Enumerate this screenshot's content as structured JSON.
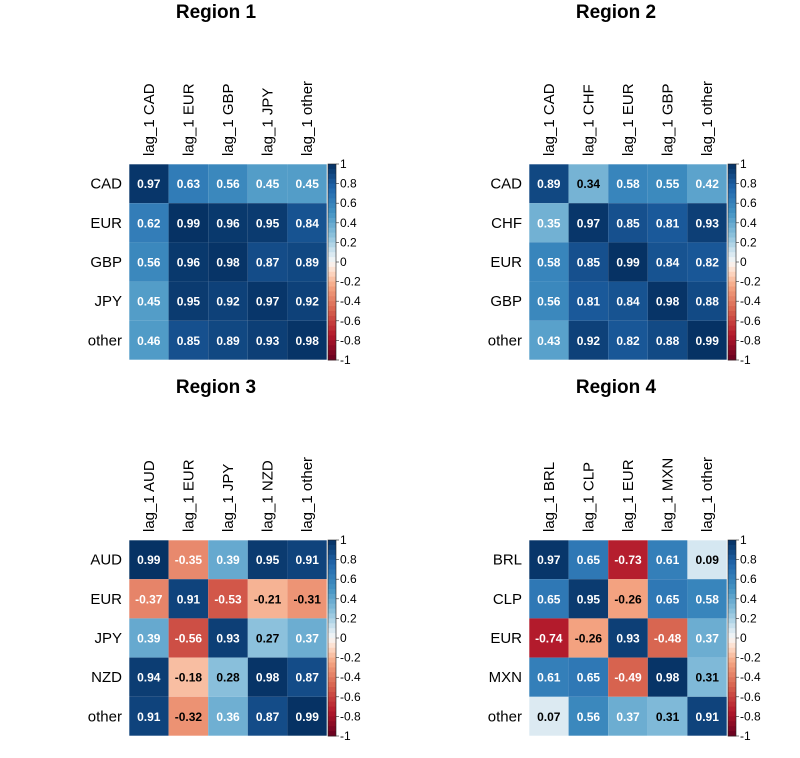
{
  "colorbar": {
    "ticks": [
      "1",
      "0.8",
      "0.6",
      "0.4",
      "0.2",
      "0",
      "-0.2",
      "-0.4",
      "-0.6",
      "-0.8",
      "-1"
    ]
  },
  "chart_data": [
    {
      "type": "heatmap",
      "title": "Region 1",
      "columns": [
        "lag_1 CAD",
        "lag_1 EUR",
        "lag_1 GBP",
        "lag_1 JPY",
        "lag_1 other"
      ],
      "rows": [
        "CAD",
        "EUR",
        "GBP",
        "JPY",
        "other"
      ],
      "values": [
        [
          0.97,
          0.63,
          0.56,
          0.45,
          0.45
        ],
        [
          0.62,
          0.99,
          0.96,
          0.95,
          0.84
        ],
        [
          0.56,
          0.96,
          0.98,
          0.87,
          0.89
        ],
        [
          0.45,
          0.95,
          0.92,
          0.97,
          0.92
        ],
        [
          0.46,
          0.85,
          0.89,
          0.93,
          0.98
        ]
      ],
      "color_range": [
        -1,
        1
      ]
    },
    {
      "type": "heatmap",
      "title": "Region 2",
      "columns": [
        "lag_1 CAD",
        "lag_1 CHF",
        "lag_1 EUR",
        "lag_1 GBP",
        "lag_1 other"
      ],
      "rows": [
        "CAD",
        "CHF",
        "EUR",
        "GBP",
        "other"
      ],
      "values": [
        [
          0.89,
          0.34,
          0.58,
          0.55,
          0.42
        ],
        [
          0.35,
          0.97,
          0.85,
          0.81,
          0.93
        ],
        [
          0.58,
          0.85,
          0.99,
          0.84,
          0.82
        ],
        [
          0.56,
          0.81,
          0.84,
          0.98,
          0.88
        ],
        [
          0.43,
          0.92,
          0.82,
          0.88,
          0.99
        ]
      ],
      "color_range": [
        -1,
        1
      ]
    },
    {
      "type": "heatmap",
      "title": "Region 3",
      "columns": [
        "lag_1 AUD",
        "lag_1 EUR",
        "lag_1 JPY",
        "lag_1 NZD",
        "lag_1 other"
      ],
      "rows": [
        "AUD",
        "EUR",
        "JPY",
        "NZD",
        "other"
      ],
      "values": [
        [
          0.99,
          -0.35,
          0.39,
          0.95,
          0.91
        ],
        [
          -0.37,
          0.91,
          -0.53,
          -0.21,
          -0.31
        ],
        [
          0.39,
          -0.56,
          0.93,
          0.27,
          0.37
        ],
        [
          0.94,
          -0.18,
          0.28,
          0.98,
          0.87
        ],
        [
          0.91,
          -0.32,
          0.36,
          0.87,
          0.99
        ]
      ],
      "color_range": [
        -1,
        1
      ]
    },
    {
      "type": "heatmap",
      "title": "Region 4",
      "columns": [
        "lag_1 BRL",
        "lag_1 CLP",
        "lag_1 EUR",
        "lag_1 MXN",
        "lag_1 other"
      ],
      "rows": [
        "BRL",
        "CLP",
        "EUR",
        "MXN",
        "other"
      ],
      "values": [
        [
          0.97,
          0.65,
          -0.73,
          0.61,
          0.09
        ],
        [
          0.65,
          0.95,
          -0.26,
          0.65,
          0.58
        ],
        [
          -0.74,
          -0.26,
          0.93,
          -0.48,
          0.37
        ],
        [
          0.61,
          0.65,
          -0.49,
          0.98,
          0.31
        ],
        [
          0.07,
          0.56,
          0.37,
          0.31,
          0.91
        ]
      ],
      "color_range": [
        -1,
        1
      ]
    }
  ]
}
